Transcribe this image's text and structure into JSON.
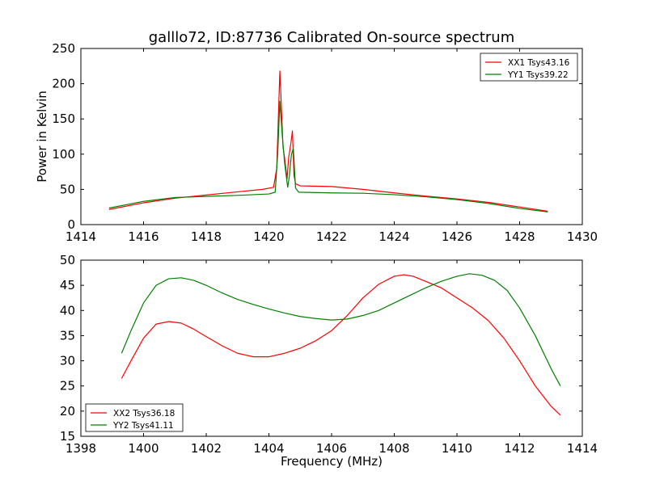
{
  "chart_data": [
    {
      "type": "line",
      "title": "galllo72, ID:87736 Calibrated On-source spectrum",
      "xlabel": "",
      "ylabel": "Power in Kelvin",
      "xlim": [
        1414,
        1430
      ],
      "ylim": [
        0,
        250
      ],
      "xticks": [
        "1414",
        "1416",
        "1418",
        "1420",
        "1422",
        "1424",
        "1426",
        "1428",
        "1430"
      ],
      "yticks": [
        "0",
        "50",
        "100",
        "150",
        "200",
        "250"
      ],
      "legend_position": "top-right",
      "series": [
        {
          "name": "XX1 Tsys43.16",
          "color": "#ff0000",
          "points": [
            [
              1414.9,
              21.5
            ],
            [
              1416.0,
              31
            ],
            [
              1417.0,
              37.5
            ],
            [
              1418.0,
              42
            ],
            [
              1419.0,
              46.5
            ],
            [
              1419.8,
              50
            ],
            [
              1420.15,
              53
            ],
            [
              1420.25,
              80
            ],
            [
              1420.3,
              150
            ],
            [
              1420.35,
              218
            ],
            [
              1420.4,
              165
            ],
            [
              1420.45,
              110
            ],
            [
              1420.5,
              95
            ],
            [
              1420.58,
              65
            ],
            [
              1420.63,
              95
            ],
            [
              1420.7,
              115
            ],
            [
              1420.75,
              133
            ],
            [
              1420.8,
              70
            ],
            [
              1420.85,
              58
            ],
            [
              1421.0,
              55
            ],
            [
              1422.0,
              54
            ],
            [
              1423.0,
              50
            ],
            [
              1424.0,
              45
            ],
            [
              1425.0,
              40.5
            ],
            [
              1426.0,
              36.5
            ],
            [
              1427.0,
              31.5
            ],
            [
              1428.0,
              25
            ],
            [
              1428.9,
              19
            ]
          ]
        },
        {
          "name": "YY1 Tsys39.22",
          "color": "#008000",
          "points": [
            [
              1414.9,
              23.5
            ],
            [
              1416.0,
              33
            ],
            [
              1417.0,
              38.5
            ],
            [
              1418.0,
              40
            ],
            [
              1419.0,
              41.5
            ],
            [
              1420.0,
              43.5
            ],
            [
              1420.2,
              46
            ],
            [
              1420.28,
              100
            ],
            [
              1420.35,
              175
            ],
            [
              1420.42,
              130
            ],
            [
              1420.5,
              88
            ],
            [
              1420.55,
              70
            ],
            [
              1420.6,
              53
            ],
            [
              1420.65,
              68
            ],
            [
              1420.72,
              100
            ],
            [
              1420.78,
              108
            ],
            [
              1420.85,
              52
            ],
            [
              1420.95,
              46
            ],
            [
              1422.0,
              45
            ],
            [
              1423.0,
              44.5
            ],
            [
              1424.0,
              42.5
            ],
            [
              1425.0,
              39.5
            ],
            [
              1426.0,
              35.5
            ],
            [
              1427.0,
              30
            ],
            [
              1428.0,
              23
            ],
            [
              1428.9,
              18
            ]
          ]
        }
      ]
    },
    {
      "type": "line",
      "title": "",
      "xlabel": "Frequency (MHz)",
      "ylabel": "",
      "xlim": [
        1398,
        1414
      ],
      "ylim": [
        15,
        50
      ],
      "xticks": [
        "1398",
        "1400",
        "1402",
        "1404",
        "1406",
        "1408",
        "1410",
        "1412",
        "1414"
      ],
      "yticks": [
        "15",
        "20",
        "25",
        "30",
        "35",
        "40",
        "45",
        "50"
      ],
      "legend_position": "bottom-left",
      "series": [
        {
          "name": "XX2 Tsys36.18",
          "color": "#ff0000",
          "points": [
            [
              1399.3,
              26.5
            ],
            [
              1399.6,
              30
            ],
            [
              1400.0,
              34.5
            ],
            [
              1400.4,
              37.3
            ],
            [
              1400.8,
              37.8
            ],
            [
              1401.2,
              37.5
            ],
            [
              1401.6,
              36.3
            ],
            [
              1402.0,
              34.8
            ],
            [
              1402.5,
              33
            ],
            [
              1403.0,
              31.5
            ],
            [
              1403.5,
              30.8
            ],
            [
              1404.0,
              30.8
            ],
            [
              1404.5,
              31.5
            ],
            [
              1405.0,
              32.5
            ],
            [
              1405.5,
              34
            ],
            [
              1406.0,
              36
            ],
            [
              1406.5,
              39
            ],
            [
              1407.0,
              42.5
            ],
            [
              1407.5,
              45.2
            ],
            [
              1408.0,
              46.8
            ],
            [
              1408.3,
              47.1
            ],
            [
              1408.6,
              46.8
            ],
            [
              1409.0,
              45.8
            ],
            [
              1409.5,
              44.5
            ],
            [
              1410.0,
              42.5
            ],
            [
              1410.5,
              40.5
            ],
            [
              1411.0,
              38
            ],
            [
              1411.5,
              34.5
            ],
            [
              1412.0,
              30
            ],
            [
              1412.5,
              25
            ],
            [
              1413.0,
              21
            ],
            [
              1413.3,
              19.2
            ]
          ]
        },
        {
          "name": "YY2 Tsys41.11",
          "color": "#008000",
          "points": [
            [
              1399.3,
              31.5
            ],
            [
              1399.6,
              36
            ],
            [
              1400.0,
              41.5
            ],
            [
              1400.4,
              45
            ],
            [
              1400.8,
              46.3
            ],
            [
              1401.2,
              46.5
            ],
            [
              1401.6,
              46
            ],
            [
              1402.0,
              45
            ],
            [
              1402.5,
              43.5
            ],
            [
              1403.0,
              42.2
            ],
            [
              1403.5,
              41.2
            ],
            [
              1404.0,
              40.3
            ],
            [
              1404.5,
              39.5
            ],
            [
              1405.0,
              38.8
            ],
            [
              1405.5,
              38.4
            ],
            [
              1406.0,
              38.1
            ],
            [
              1406.5,
              38.3
            ],
            [
              1407.0,
              39
            ],
            [
              1407.5,
              40
            ],
            [
              1408.0,
              41.5
            ],
            [
              1408.5,
              43
            ],
            [
              1409.0,
              44.5
            ],
            [
              1409.5,
              45.8
            ],
            [
              1410.0,
              46.8
            ],
            [
              1410.4,
              47.3
            ],
            [
              1410.8,
              47
            ],
            [
              1411.2,
              46
            ],
            [
              1411.6,
              44
            ],
            [
              1412.0,
              40.5
            ],
            [
              1412.5,
              35
            ],
            [
              1413.0,
              28.5
            ],
            [
              1413.3,
              25
            ]
          ]
        }
      ]
    }
  ]
}
